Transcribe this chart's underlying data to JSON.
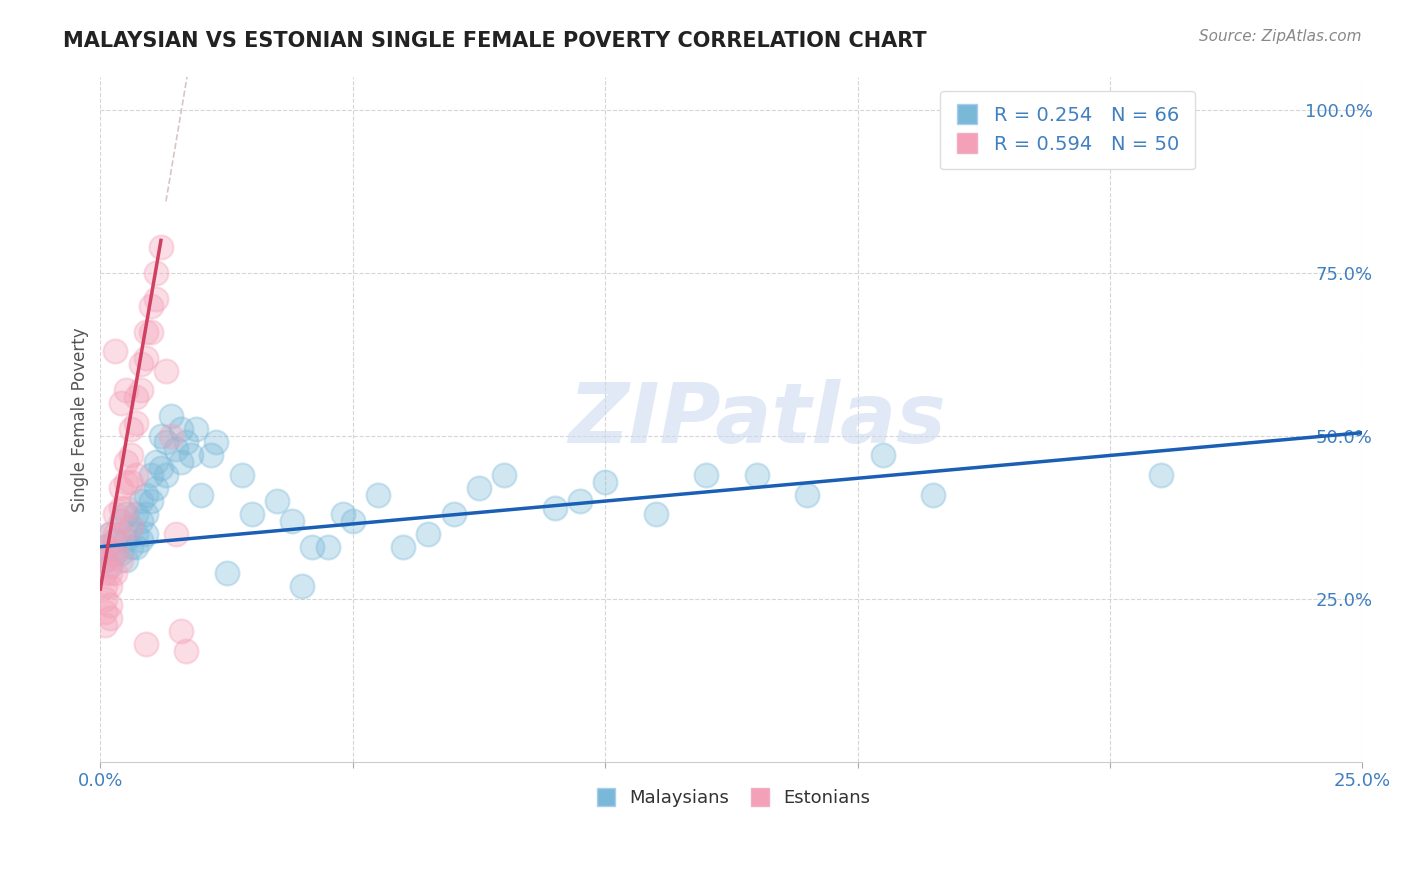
{
  "title": "MALAYSIAN VS ESTONIAN SINGLE FEMALE POVERTY CORRELATION CHART",
  "source_text": "Source: ZipAtlas.com",
  "ylabel": "Single Female Poverty",
  "watermark": "ZIPatlas",
  "xlim": [
    0.0,
    0.25
  ],
  "ylim": [
    0.0,
    1.05
  ],
  "xticks": [
    0.0,
    0.05,
    0.1,
    0.15,
    0.2,
    0.25
  ],
  "xticklabels": [
    "0.0%",
    "",
    "",
    "",
    "",
    "25.0%"
  ],
  "yticks": [
    0.25,
    0.5,
    0.75,
    1.0
  ],
  "yticklabels": [
    "25.0%",
    "50.0%",
    "75.0%",
    "100.0%"
  ],
  "blue_color": "#7ab8d8",
  "pink_color": "#f4a0b8",
  "blue_line_color": "#1a5fb4",
  "pink_line_color": "#d04060",
  "tick_color": "#4080c0",
  "grid_color": "#cccccc",
  "title_color": "#222222",
  "source_color": "#888888",
  "blue_scatter": [
    [
      0.001,
      0.33
    ],
    [
      0.001,
      0.31
    ],
    [
      0.002,
      0.35
    ],
    [
      0.002,
      0.3
    ],
    [
      0.003,
      0.34
    ],
    [
      0.003,
      0.32
    ],
    [
      0.004,
      0.37
    ],
    [
      0.004,
      0.32
    ],
    [
      0.005,
      0.38
    ],
    [
      0.005,
      0.34
    ],
    [
      0.005,
      0.31
    ],
    [
      0.006,
      0.36
    ],
    [
      0.006,
      0.33
    ],
    [
      0.007,
      0.38
    ],
    [
      0.007,
      0.35
    ],
    [
      0.007,
      0.33
    ],
    [
      0.008,
      0.4
    ],
    [
      0.008,
      0.37
    ],
    [
      0.008,
      0.34
    ],
    [
      0.009,
      0.41
    ],
    [
      0.009,
      0.38
    ],
    [
      0.009,
      0.35
    ],
    [
      0.01,
      0.44
    ],
    [
      0.01,
      0.4
    ],
    [
      0.011,
      0.46
    ],
    [
      0.011,
      0.42
    ],
    [
      0.012,
      0.5
    ],
    [
      0.012,
      0.45
    ],
    [
      0.013,
      0.49
    ],
    [
      0.013,
      0.44
    ],
    [
      0.014,
      0.53
    ],
    [
      0.015,
      0.48
    ],
    [
      0.016,
      0.51
    ],
    [
      0.016,
      0.46
    ],
    [
      0.017,
      0.49
    ],
    [
      0.018,
      0.47
    ],
    [
      0.019,
      0.51
    ],
    [
      0.02,
      0.41
    ],
    [
      0.022,
      0.47
    ],
    [
      0.023,
      0.49
    ],
    [
      0.025,
      0.29
    ],
    [
      0.028,
      0.44
    ],
    [
      0.03,
      0.38
    ],
    [
      0.035,
      0.4
    ],
    [
      0.038,
      0.37
    ],
    [
      0.04,
      0.27
    ],
    [
      0.042,
      0.33
    ],
    [
      0.045,
      0.33
    ],
    [
      0.048,
      0.38
    ],
    [
      0.05,
      0.37
    ],
    [
      0.055,
      0.41
    ],
    [
      0.06,
      0.33
    ],
    [
      0.065,
      0.35
    ],
    [
      0.07,
      0.38
    ],
    [
      0.075,
      0.42
    ],
    [
      0.08,
      0.44
    ],
    [
      0.09,
      0.39
    ],
    [
      0.095,
      0.4
    ],
    [
      0.1,
      0.43
    ],
    [
      0.11,
      0.38
    ],
    [
      0.12,
      0.44
    ],
    [
      0.13,
      0.44
    ],
    [
      0.14,
      0.41
    ],
    [
      0.155,
      0.47
    ],
    [
      0.165,
      0.41
    ],
    [
      0.21,
      0.44
    ]
  ],
  "pink_scatter": [
    [
      0.001,
      0.33
    ],
    [
      0.001,
      0.31
    ],
    [
      0.001,
      0.29
    ],
    [
      0.001,
      0.27
    ],
    [
      0.001,
      0.25
    ],
    [
      0.001,
      0.23
    ],
    [
      0.001,
      0.21
    ],
    [
      0.002,
      0.35
    ],
    [
      0.002,
      0.32
    ],
    [
      0.002,
      0.29
    ],
    [
      0.002,
      0.27
    ],
    [
      0.002,
      0.24
    ],
    [
      0.002,
      0.22
    ],
    [
      0.003,
      0.38
    ],
    [
      0.003,
      0.35
    ],
    [
      0.003,
      0.32
    ],
    [
      0.003,
      0.29
    ],
    [
      0.004,
      0.42
    ],
    [
      0.004,
      0.39
    ],
    [
      0.004,
      0.35
    ],
    [
      0.004,
      0.31
    ],
    [
      0.005,
      0.46
    ],
    [
      0.005,
      0.43
    ],
    [
      0.005,
      0.39
    ],
    [
      0.006,
      0.51
    ],
    [
      0.006,
      0.47
    ],
    [
      0.006,
      0.43
    ],
    [
      0.007,
      0.56
    ],
    [
      0.007,
      0.52
    ],
    [
      0.008,
      0.61
    ],
    [
      0.008,
      0.57
    ],
    [
      0.009,
      0.66
    ],
    [
      0.009,
      0.62
    ],
    [
      0.01,
      0.7
    ],
    [
      0.01,
      0.66
    ],
    [
      0.011,
      0.75
    ],
    [
      0.011,
      0.71
    ],
    [
      0.012,
      0.79
    ],
    [
      0.013,
      0.6
    ],
    [
      0.014,
      0.5
    ],
    [
      0.015,
      0.35
    ],
    [
      0.016,
      0.2
    ],
    [
      0.017,
      0.17
    ],
    [
      0.003,
      0.63
    ],
    [
      0.004,
      0.55
    ],
    [
      0.005,
      0.57
    ],
    [
      0.006,
      0.36
    ],
    [
      0.007,
      0.44
    ],
    [
      0.009,
      0.18
    ]
  ],
  "blue_line": {
    "x0": 0.0,
    "x1": 0.25,
    "y0": 0.33,
    "y1": 0.505
  },
  "pink_line": {
    "x0": 0.0,
    "x1": 0.012,
    "y0": 0.265,
    "y1": 0.8
  },
  "pink_line_dashed": {
    "x0": 0.0,
    "x1": 0.013,
    "y0": 0.265,
    "y1": 0.86
  }
}
